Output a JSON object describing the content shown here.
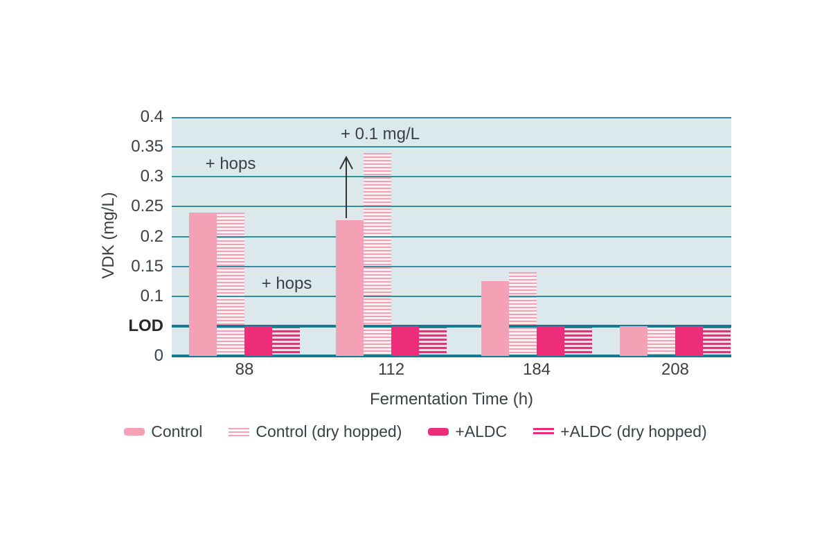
{
  "chart_data": {
    "type": "grouped_bar",
    "title": "",
    "xlabel": "Fermentation Time (h)",
    "ylabel": "VDK (mg/L)",
    "ylim": [
      0,
      0.4
    ],
    "grid": true,
    "legend_position": "bottom",
    "lod_value": 0.05,
    "categories": [
      "88",
      "112",
      "184",
      "208"
    ],
    "yticks": [
      {
        "value": 0,
        "label": "0",
        "major": true,
        "bold": false
      },
      {
        "value": 0.05,
        "label": "LOD",
        "major": true,
        "bold": true
      },
      {
        "value": 0.1,
        "label": "0.1",
        "major": false,
        "bold": false
      },
      {
        "value": 0.15,
        "label": "0.15",
        "major": false,
        "bold": false
      },
      {
        "value": 0.2,
        "label": "0.2",
        "major": false,
        "bold": false
      },
      {
        "value": 0.25,
        "label": "0.25",
        "major": false,
        "bold": false
      },
      {
        "value": 0.3,
        "label": "0.3",
        "major": false,
        "bold": false
      },
      {
        "value": 0.35,
        "label": "0.35",
        "major": false,
        "bold": false
      },
      {
        "value": 0.4,
        "label": "0.4",
        "major": false,
        "bold": false
      }
    ],
    "series": [
      {
        "name": "Control",
        "style": "solid-pink",
        "values": [
          0.24,
          0.227,
          0.125,
          0.05
        ]
      },
      {
        "name": "Control (dry hopped)",
        "style": "hatch-pink",
        "values": [
          0.24,
          0.34,
          0.14,
          0.05
        ]
      },
      {
        "name": "+ALDC",
        "style": "solid-magenta",
        "values": [
          0.05,
          0.05,
          0.05,
          0.05
        ]
      },
      {
        "name": "+ALDC (dry hopped)",
        "style": "hatch-magenta",
        "values": [
          0.05,
          0.05,
          0.05,
          0.05
        ]
      }
    ],
    "annotations": [
      {
        "id": "hops-88",
        "text": "+ hops"
      },
      {
        "id": "hops-88-aldc",
        "text": "+ hops"
      },
      {
        "id": "increase-112",
        "text": "+ 0.1 mg/L"
      }
    ]
  },
  "colors": {
    "pink": "#F4A0B5",
    "pink_hatch_bg": "#FCEFF2",
    "magenta": "#EE2D7A",
    "magenta_hatch_bg": "#F6D9E4",
    "plot_background": "#DBE9ED",
    "gridline": "#2F8E9E",
    "axis_major": "#117C90",
    "text": "#3C4043"
  }
}
